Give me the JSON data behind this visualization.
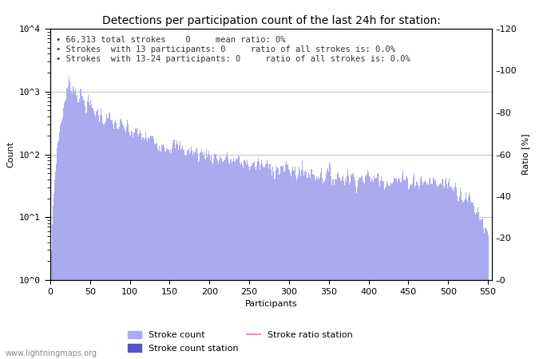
{
  "title": "Detections per participation count of the last 24h for station:",
  "xlabel": "Participants",
  "ylabel_left": "Count",
  "ylabel_right": "Ratio [%]",
  "annotation_lines": [
    "66,313 total strokes    0     mean ratio: 0%",
    "Strokes  with 13 participants: 0     ratio of all strokes is: 0.0%",
    "Strokes  with 13-24 participants: 0     ratio of all strokes is: 0.0%"
  ],
  "bar_color": "#aaaaee",
  "bar_color_station": "#5555cc",
  "ratio_line_color": "#ff88cc",
  "watermark": "www.lightningmaps.org",
  "xlim": [
    0,
    555
  ],
  "ylim_right": [
    0,
    120
  ],
  "right_ticks": [
    0,
    20,
    40,
    60,
    80,
    100,
    120
  ],
  "xticks": [
    0,
    50,
    100,
    150,
    200,
    250,
    300,
    350,
    400,
    450,
    500,
    550
  ],
  "legend_items": [
    "Stroke count",
    "Stroke count station",
    "Stroke ratio station"
  ]
}
